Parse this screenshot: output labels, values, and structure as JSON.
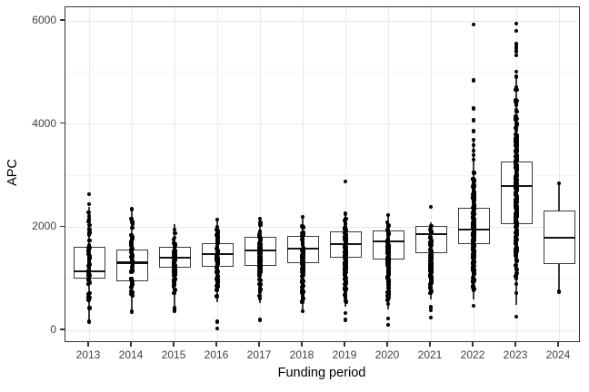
{
  "chart_data": {
    "type": "boxplot",
    "title": "",
    "xlabel": "Funding period",
    "ylabel": "APC",
    "ylim": [
      0,
      6000
    ],
    "yticks": [
      0,
      2000,
      4000,
      6000
    ],
    "yticks_minor": [
      1000,
      3000,
      5000
    ],
    "categories": [
      "2013",
      "2014",
      "2015",
      "2016",
      "2017",
      "2018",
      "2019",
      "2020",
      "2021",
      "2022",
      "2023",
      "2024"
    ],
    "legend": "none",
    "grid": "on",
    "colors": {
      "point": "#000000",
      "box_border": "#3a3a3a",
      "median": "#141414",
      "grid_major": "#e9e9e9",
      "grid_minor": "#f4f4f4",
      "panel_border": "#333333",
      "tick_text": "#404040",
      "title_text": "#000000",
      "background": "#ffffff"
    },
    "series": [
      {
        "year": "2013",
        "q1": 1000,
        "median": 1150,
        "q3": 1620,
        "whisker_low": 170,
        "whisker_high": 2400,
        "points_dense": {
          "min": 400,
          "max": 2350,
          "count": 48
        },
        "points_extra": [
          2640,
          2450,
          170
        ]
      },
      {
        "year": "2014",
        "q1": 945,
        "median": 1310,
        "q3": 1560,
        "whisker_low": 360,
        "whisker_high": 2300,
        "points_dense": {
          "min": 500,
          "max": 2300,
          "count": 55
        },
        "points_extra": [
          2350,
          360
        ]
      },
      {
        "year": "2015",
        "q1": 1210,
        "median": 1410,
        "q3": 1620,
        "whisker_low": 430,
        "whisker_high": 2050,
        "points_dense": {
          "min": 550,
          "max": 2050,
          "count": 62
        },
        "points_extra": [
          430,
          380
        ]
      },
      {
        "year": "2016",
        "q1": 1235,
        "median": 1480,
        "q3": 1690,
        "whisker_low": 550,
        "whisker_high": 2150,
        "points_dense": {
          "min": 600,
          "max": 2100,
          "count": 75
        },
        "points_extra": [
          2150,
          170,
          40
        ]
      },
      {
        "year": "2017",
        "q1": 1255,
        "median": 1550,
        "q3": 1810,
        "whisker_low": 520,
        "whisker_high": 2160,
        "points_dense": {
          "min": 550,
          "max": 2100,
          "count": 85
        },
        "points_extra": [
          2160,
          200
        ]
      },
      {
        "year": "2018",
        "q1": 1305,
        "median": 1585,
        "q3": 1830,
        "whisker_low": 370,
        "whisker_high": 2200,
        "points_dense": {
          "min": 450,
          "max": 2150,
          "count": 95
        },
        "points_extra": [
          2200,
          370
        ]
      },
      {
        "year": "2019",
        "q1": 1410,
        "median": 1670,
        "q3": 1915,
        "whisker_low": 450,
        "whisker_high": 2260,
        "points_dense": {
          "min": 450,
          "max": 2200,
          "count": 110
        },
        "points_extra": [
          2890,
          2260,
          330,
          200
        ]
      },
      {
        "year": "2020",
        "q1": 1375,
        "median": 1720,
        "q3": 1930,
        "whisker_low": 400,
        "whisker_high": 2230,
        "points_dense": {
          "min": 400,
          "max": 2200,
          "count": 110
        },
        "points_extra": [
          2230,
          230,
          110
        ]
      },
      {
        "year": "2021",
        "q1": 1500,
        "median": 1860,
        "q3": 2020,
        "whisker_low": 600,
        "whisker_high": 2100,
        "points_dense": {
          "min": 620,
          "max": 2080,
          "count": 120
        },
        "points_extra": [
          2390,
          450,
          390,
          250
        ]
      },
      {
        "year": "2022",
        "q1": 1680,
        "median": 1950,
        "q3": 2370,
        "whisker_low": 600,
        "whisker_high": 3690,
        "points_dense": {
          "min": 620,
          "max": 3250,
          "count": 200
        },
        "points_extra": [
          5930,
          4850,
          4300,
          4070,
          3860,
          3690,
          3590,
          3480,
          3400,
          3310,
          470
        ]
      },
      {
        "year": "2023",
        "q1": 2065,
        "median": 2800,
        "q3": 3270,
        "whisker_low": 500,
        "whisker_high": 4920,
        "points_dense": {
          "min": 520,
          "max": 4830,
          "count": 230
        },
        "points_extra": [
          5950,
          5810,
          5550,
          5480,
          5410,
          5330,
          5010,
          4920,
          260
        ]
      },
      {
        "year": "2024",
        "q1": 1280,
        "median": 1800,
        "q3": 2330,
        "whisker_low": 750,
        "whisker_high": 2850,
        "points_dense": {
          "min": 0,
          "max": 0,
          "count": 0
        },
        "points_extra": [
          2850,
          750
        ]
      }
    ]
  }
}
